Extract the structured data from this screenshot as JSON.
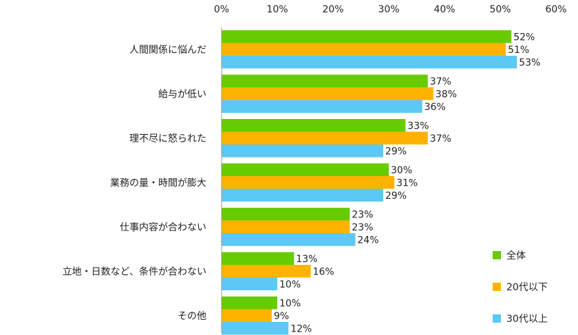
{
  "chart_data": {
    "type": "bar",
    "orientation": "horizontal",
    "categories": [
      "人間関係に悩んだ",
      "給与が低い",
      "理不尽に怒られた",
      "業務の量・時間が膨大",
      "仕事内容が合わない",
      "立地・日数など、条件が合わない",
      "その他"
    ],
    "series": [
      {
        "name": "全体",
        "color": "#66cc00",
        "values": [
          52,
          37,
          33,
          30,
          23,
          13,
          10
        ]
      },
      {
        "name": "20代以下",
        "color": "#ffb300",
        "values": [
          51,
          38,
          37,
          31,
          23,
          16,
          9
        ]
      },
      {
        "name": "30代以上",
        "color": "#5bc8f5",
        "values": [
          53,
          36,
          29,
          29,
          24,
          10,
          12
        ]
      }
    ],
    "value_suffix": "%",
    "xlim": [
      0,
      60
    ],
    "x_ticks": [
      "0%",
      "10%",
      "20%",
      "30%",
      "40%",
      "50%",
      "60%"
    ],
    "x_tick_values": [
      0,
      10,
      20,
      30,
      40,
      50,
      60
    ],
    "x_axis_position": "top",
    "grid": false,
    "legend_position": "bottom-right"
  }
}
